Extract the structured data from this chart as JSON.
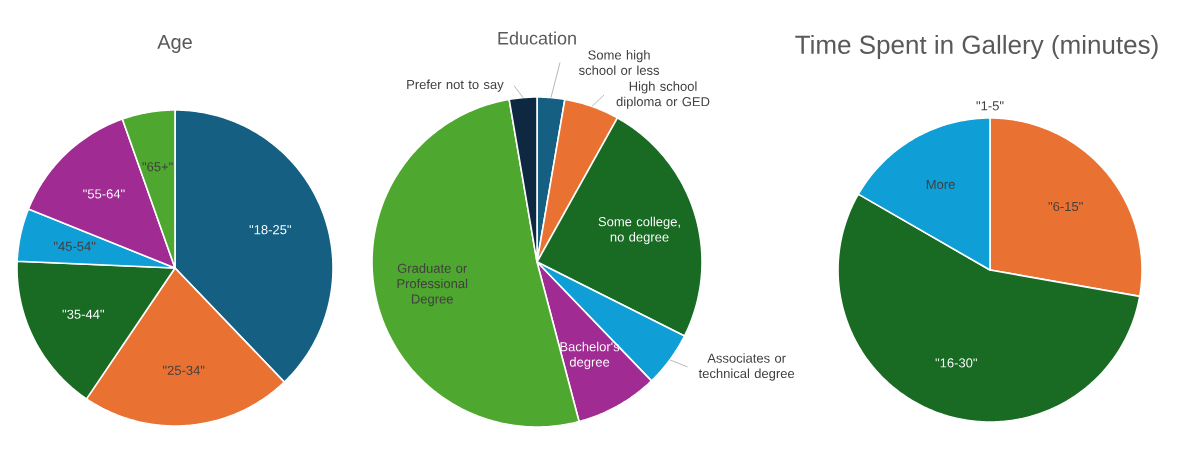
{
  "chart_data": [
    {
      "type": "pie",
      "title": "Age",
      "categories": [
        "\"18-25\"",
        "\"25-34\"",
        "\"35-44\"",
        "\"45-54\"",
        "\"55-64\"",
        "\"65+\""
      ],
      "values": [
        37.8,
        21.6,
        16.2,
        5.4,
        13.5,
        5.4
      ],
      "colors": [
        "#156082",
        "#e97132",
        "#196b24",
        "#0f9ed5",
        "#a02b93",
        "#4ea72e"
      ]
    },
    {
      "type": "pie",
      "title": "Education",
      "categories": [
        "Some high school or less",
        "High school diploma or GED",
        "Some college, no degree",
        "Associates or technical degree",
        "Bachelor's degree",
        "Graduate or Professional Degree",
        "Prefer not to say"
      ],
      "values": [
        2.7,
        5.4,
        24.3,
        5.4,
        8.1,
        51.4,
        2.7
      ],
      "colors": [
        "#156082",
        "#e97132",
        "#196b24",
        "#0f9ed5",
        "#a02b93",
        "#4ea72e",
        "#0e2841"
      ]
    },
    {
      "type": "pie",
      "title": "Time Spent in Gallery (minutes)",
      "categories": [
        "\"1-5\"",
        "\"6-15\"",
        "\"16-30\"",
        "More"
      ],
      "values": [
        0,
        27.8,
        55.6,
        16.7
      ],
      "colors": [
        "#156082",
        "#e97132",
        "#196b24",
        "#0f9ed5"
      ]
    }
  ]
}
